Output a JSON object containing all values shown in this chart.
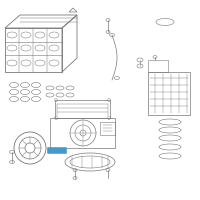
{
  "background_color": "#ffffff",
  "line_color": "#aaaaaa",
  "dark_line_color": "#777777",
  "highlight_color": "#4499cc",
  "fig_width": 2.0,
  "fig_height": 2.0,
  "dpi": 100
}
